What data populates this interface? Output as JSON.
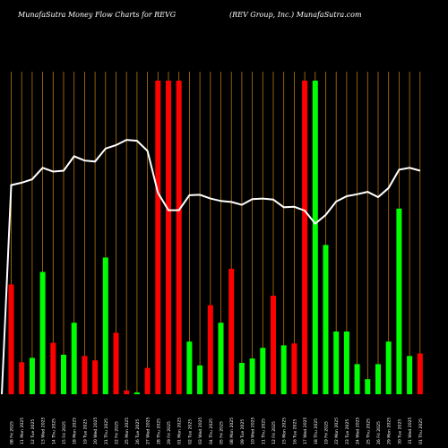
{
  "header": {
    "left": "MunafaSutra  Money Flow  Charts for REVG",
    "right": "(REV Group, Inc.) MunafaSutra.com"
  },
  "colors": {
    "background": "#000000",
    "gridline": "#b8760a",
    "up": "#00ff00",
    "down": "#ff0000",
    "line": "#ffffff"
  },
  "chart_data": {
    "type": "bar",
    "title": "MunafaSutra  Money Flow  Charts for REVG",
    "subtitle": "(REV Group, Inc.) MunafaSutra.com",
    "note": "Bars show money-flow volume (green = up day, red = down day); white line is price.",
    "grid": true,
    "categories": [
      "08 Fri 2025",
      "11 Mon 2025",
      "12 Tue 2025",
      "13 Wed 2025",
      "14 Thu 2025",
      "15 Fri 2025",
      "18 Mon 2025",
      "19 Tue 2025",
      "20 Wed 2025",
      "21 Thu 2025",
      "22 Fri 2025",
      "25 Mon 2025",
      "26 Tue 2025",
      "27 Wed 2025",
      "28 Thu 2025",
      "29 Fri 2025",
      "01 Mon 2025",
      "02 Tue 2025",
      "03 Wed 2025",
      "04 Thu 2025",
      "05 Fri 2025",
      "08 Mon 2025",
      "09 Tue 2025",
      "10 Wed 2025",
      "11 Thu 2025",
      "12 Fri 2025",
      "15 Mon 2025",
      "16 Tue 2025",
      "17 Wed 2025",
      "18 Thu 2025",
      "19 Fri 2025",
      "22 Mon 2025",
      "23 Tue 2025",
      "24 Wed 2025",
      "25 Thu 2025",
      "26 Fri 2025",
      "29 Mon 2025",
      "30 Tue 2025",
      "31 Wed 2025",
      "01 Thu 2025"
    ],
    "series": [
      {
        "name": "Money flow",
        "values": [
          175,
          51,
          58,
          195,
          82,
          63,
          114,
          61,
          54,
          218,
          98,
          6,
          3,
          42,
          500,
          500,
          500,
          84,
          46,
          142,
          114,
          200,
          50,
          57,
          74,
          157,
          78,
          81,
          500,
          500,
          238,
          100,
          100,
          48,
          24,
          48,
          84,
          296,
          61,
          65
        ],
        "direction": [
          "down",
          "down",
          "up",
          "up",
          "down",
          "up",
          "up",
          "down",
          "down",
          "up",
          "down",
          "down",
          "up",
          "down",
          "down",
          "down",
          "down",
          "up",
          "up",
          "down",
          "up",
          "down",
          "up",
          "up",
          "up",
          "down",
          "up",
          "down",
          "down",
          "up",
          "up",
          "up",
          "up",
          "up",
          "up",
          "up",
          "up",
          "up",
          "up",
          "down"
        ]
      },
      {
        "name": "Price",
        "values": [
          30.4,
          30.9,
          31.6,
          34.0,
          33.2,
          33.4,
          36.4,
          35.5,
          35.3,
          38.0,
          38.7,
          39.8,
          39.6,
          37.5,
          28.8,
          25.2,
          25.2,
          28.3,
          28.4,
          27.6,
          27.1,
          26.9,
          26.3,
          27.5,
          27.6,
          27.4,
          25.8,
          25.9,
          25.1,
          22.4,
          24.2,
          27.0,
          28.1,
          28.5,
          29.0,
          27.9,
          29.8,
          33.6,
          34.0,
          33.4
        ]
      }
    ]
  }
}
